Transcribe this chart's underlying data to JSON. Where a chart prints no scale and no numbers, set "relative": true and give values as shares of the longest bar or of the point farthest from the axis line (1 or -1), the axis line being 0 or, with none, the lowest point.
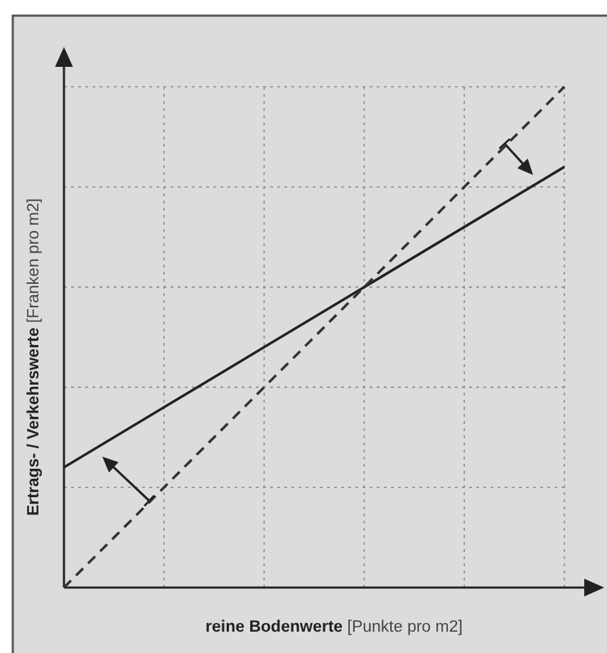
{
  "chart_data": {
    "type": "line",
    "relative": true,
    "xlabel": "reine Bodenwerte [Punkte pro m2]",
    "ylabel": "Ertrags- / Verkehrswerte [Franken pro m2]",
    "categories": [
      null,
      null,
      null,
      null,
      null,
      null
    ],
    "grid": true,
    "marker": "none",
    "series": [
      {
        "color": "#222222",
        "line_style": "solid",
        "values": [
          0.24,
          0.36,
          0.48,
          0.6,
          0.72,
          0.84
        ]
      },
      {
        "color": "#333333",
        "line_style": "dashed",
        "values": [
          0,
          0.2,
          0.4,
          0.6,
          0.8,
          1
        ]
      }
    ]
  }
}
